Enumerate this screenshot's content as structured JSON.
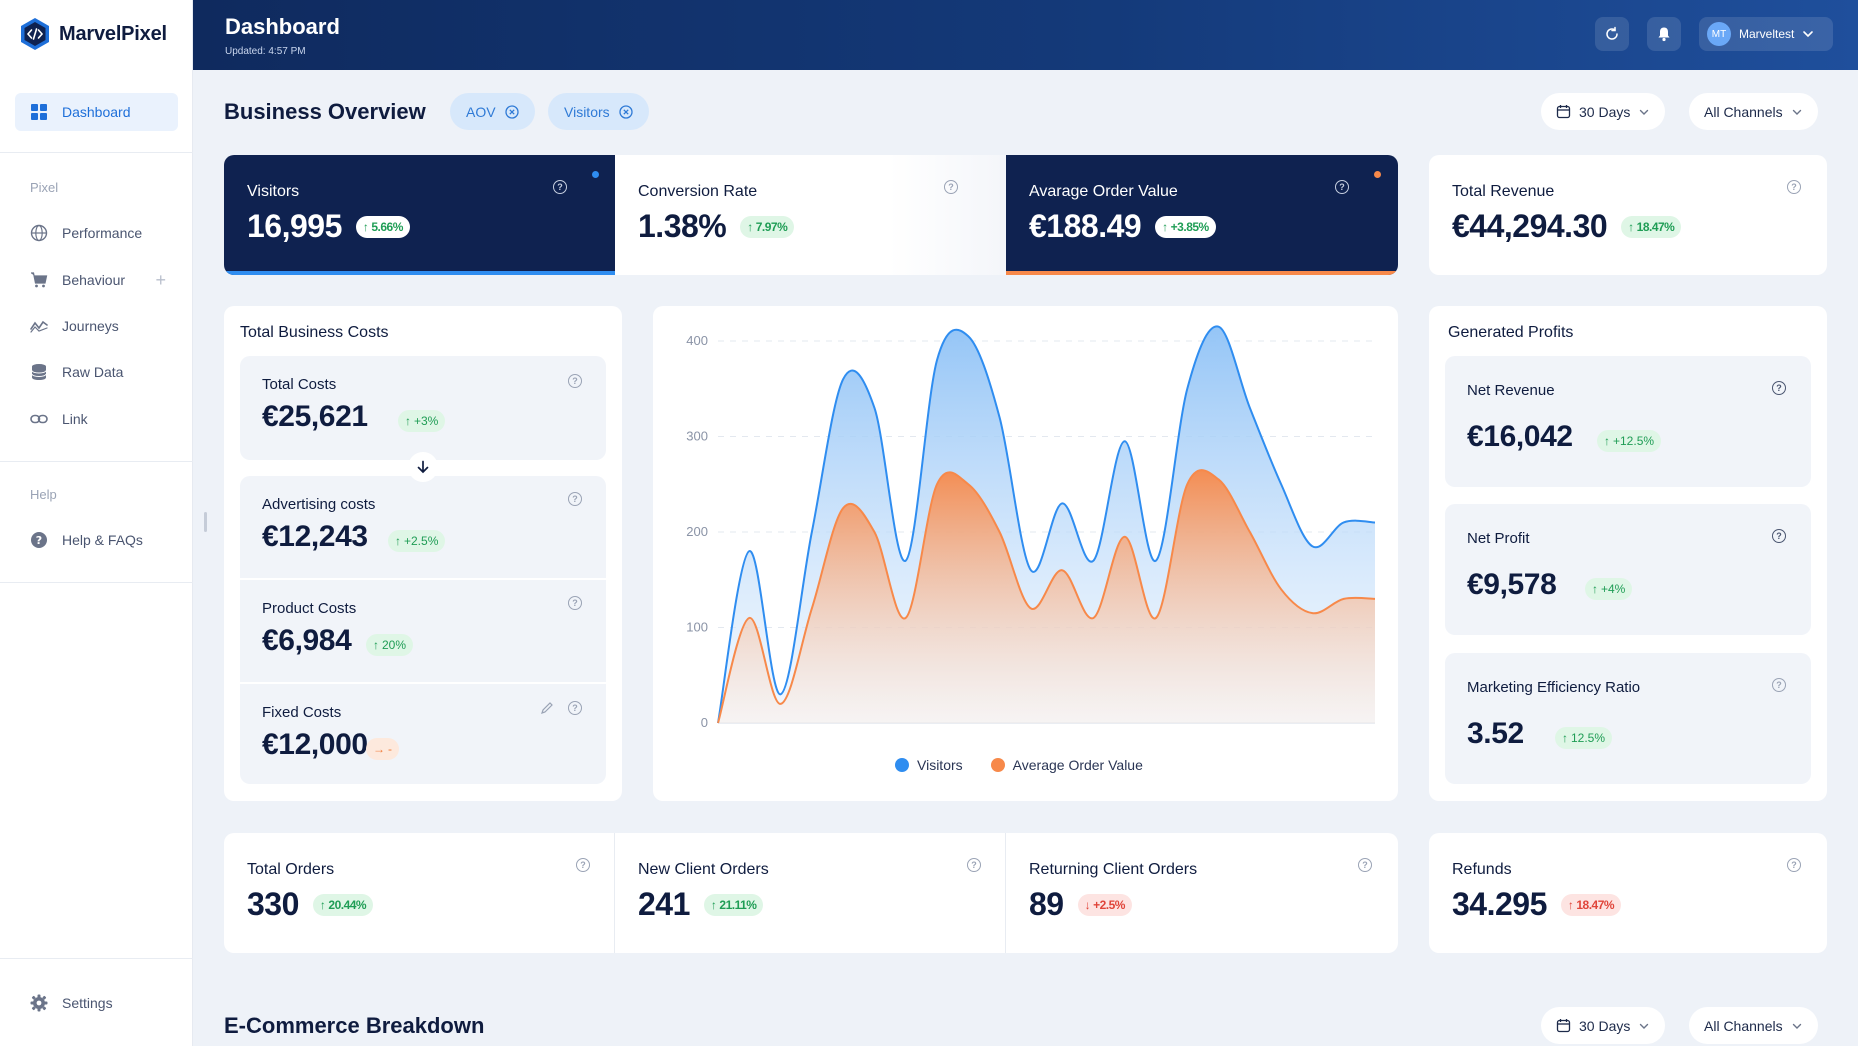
{
  "app": {
    "name": "MarvelPixel"
  },
  "sidebar": {
    "items": [
      {
        "label": "Dashboard",
        "icon": "grid-icon"
      },
      {
        "label": "Performance",
        "icon": "globe-icon"
      },
      {
        "label": "Behaviour",
        "icon": "cart-icon"
      },
      {
        "label": "Journeys",
        "icon": "route-icon"
      },
      {
        "label": "Raw Data",
        "icon": "database-icon"
      },
      {
        "label": "Link",
        "icon": "link-icon"
      },
      {
        "label": "Help & FAQs",
        "icon": "help-icon"
      },
      {
        "label": "Settings",
        "icon": "gear-icon"
      }
    ],
    "sections": {
      "pixel": "Pixel",
      "help": "Help"
    },
    "plus": "+"
  },
  "header": {
    "title": "Dashboard",
    "updated": "Updated: 4:57 PM",
    "user_initials": "MT",
    "user_name": "Marveltest"
  },
  "overview": {
    "title": "Business Overview",
    "chips": [
      "AOV",
      "Visitors"
    ],
    "period": "30 Days",
    "channel": "All Channels"
  },
  "kpis": [
    {
      "label": "Visitors",
      "value": "16,995",
      "change": "5.66%",
      "direction": "up"
    },
    {
      "label": "Conversion Rate",
      "value": "1.38%",
      "change": "7.97%",
      "direction": "up"
    },
    {
      "label": "Avarage Order Value",
      "value": "€188.49",
      "change": "+3.85%",
      "direction": "up"
    },
    {
      "label": "Total Revenue",
      "value": "€44,294.30",
      "change": "18.47%",
      "direction": "up"
    }
  ],
  "costs": {
    "title": "Total Business Costs",
    "items": [
      {
        "label": "Total Costs",
        "value": "€25,621",
        "change": "+3%"
      },
      {
        "label": "Advertising costs",
        "value": "€12,243",
        "change": "+2.5%"
      },
      {
        "label": "Product Costs",
        "value": "€6,984",
        "change": "20%"
      },
      {
        "label": "Fixed Costs",
        "value": "€12,000",
        "change": "-"
      }
    ]
  },
  "profits": {
    "title": "Generated Profits",
    "items": [
      {
        "label": "Net Revenue",
        "value": "€16,042",
        "change": "+12.5%"
      },
      {
        "label": "Net Profit",
        "value": "€9,578",
        "change": "+4%"
      },
      {
        "label": "Marketing Efficiency Ratio",
        "value": "3.52",
        "change": "12.5%"
      }
    ]
  },
  "orders": [
    {
      "label": "Total Orders",
      "value": "330",
      "change": "20.44%",
      "direction": "up"
    },
    {
      "label": "New Client Orders",
      "value": "241",
      "change": "21.11%",
      "direction": "up"
    },
    {
      "label": "Returning Client Orders",
      "value": "89",
      "change": "+2.5%",
      "direction": "down"
    },
    {
      "label": "Refunds",
      "value": "34.295",
      "change": "18.47%",
      "direction": "up-red"
    }
  ],
  "ecommerce": {
    "title": "E-Commerce Breakdown",
    "period": "30 Days",
    "channel": "All Channels"
  },
  "colors": {
    "accent": "#1e6fd9",
    "visitors": "#2f8df0",
    "aov": "#f7894a",
    "navy": "#0f2250"
  },
  "chart_data": {
    "type": "area",
    "title": "",
    "xlabel": "",
    "ylabel": "",
    "ylim": [
      0,
      400
    ],
    "yticks": [
      0,
      100,
      200,
      300,
      400
    ],
    "x": [
      0,
      1,
      2,
      3,
      4,
      5,
      6,
      7,
      8,
      9,
      10,
      11,
      12,
      13,
      14,
      15,
      16,
      17,
      18,
      19,
      20,
      21
    ],
    "series": [
      {
        "name": "Visitors",
        "color": "#2f8df0",
        "values": [
          0,
          180,
          30,
          200,
          360,
          330,
          170,
          380,
          405,
          320,
          160,
          230,
          170,
          295,
          170,
          350,
          415,
          330,
          250,
          185,
          210,
          210
        ]
      },
      {
        "name": "Average Order Value",
        "color": "#f7894a",
        "values": [
          0,
          110,
          20,
          120,
          225,
          200,
          110,
          250,
          250,
          200,
          120,
          160,
          110,
          195,
          110,
          250,
          255,
          200,
          140,
          115,
          130,
          130
        ]
      }
    ]
  }
}
